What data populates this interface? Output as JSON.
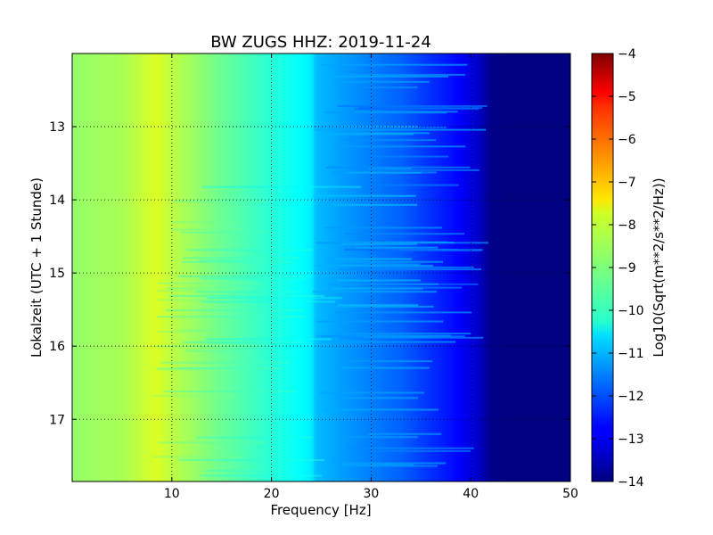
{
  "chart_data": {
    "type": "heatmap",
    "title": "BW ZUGS HHZ: 2019-11-24",
    "xlabel": "Frequency [Hz]",
    "ylabel": "Lokalzeit (UTC + 1 Stunde)",
    "xlim": [
      0,
      50
    ],
    "ylim": [
      12.0,
      17.85
    ],
    "y_inverted": true,
    "x_ticks": [
      10,
      20,
      30,
      40,
      50
    ],
    "y_ticks": [
      13,
      14,
      15,
      16,
      17
    ],
    "grid": true,
    "colorbar": {
      "label": "Log10(Sqrt(m**2/s**2/Hz))",
      "range": [
        -14,
        -4
      ],
      "ticks": [
        -4,
        -5,
        -6,
        -7,
        -8,
        -9,
        -10,
        -11,
        -12,
        -13,
        -14
      ],
      "colormap": "jet"
    },
    "spectrum_profile": {
      "frequency_hz": [
        0,
        2,
        5,
        7,
        8.5,
        10,
        12,
        15,
        18,
        21,
        24,
        24.5,
        27,
        30,
        33,
        36,
        38,
        40,
        41,
        42,
        44,
        50
      ],
      "log10_psd": [
        -8.8,
        -8.7,
        -8.6,
        -8.3,
        -8.1,
        -8.4,
        -8.7,
        -9.2,
        -9.6,
        -10.0,
        -10.4,
        -10.9,
        -11.2,
        -11.5,
        -11.8,
        -12.3,
        -12.6,
        -13.0,
        -13.4,
        -13.9,
        -14.0,
        -14.0
      ]
    }
  }
}
